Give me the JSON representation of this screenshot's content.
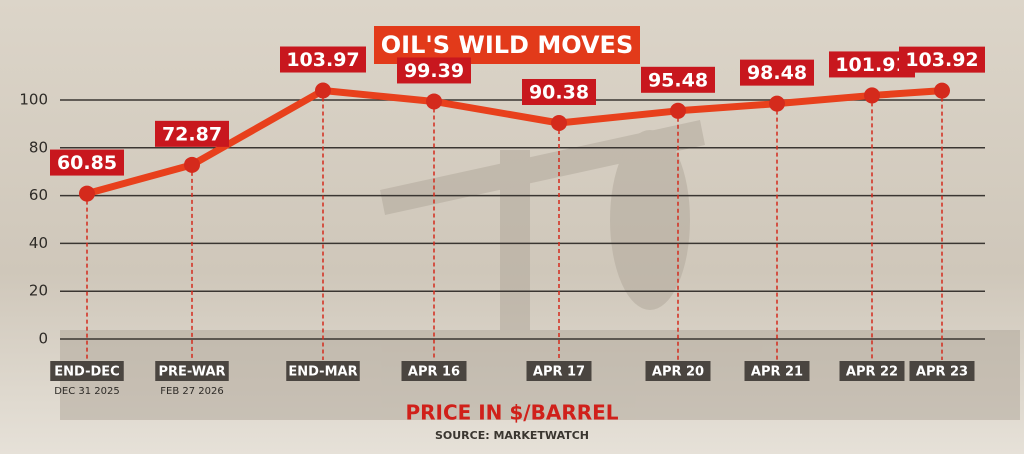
{
  "chart_data": {
    "type": "line",
    "title": "OIL'S WILD MOVES",
    "subtitle": "PRICE IN $/BARREL",
    "source": "SOURCE: MARKETWATCH",
    "categories": [
      "END-DEC",
      "PRE-WAR",
      "END-MAR",
      "APR 16",
      "APR 17",
      "APR 20",
      "APR 21",
      "APR 22",
      "APR 23"
    ],
    "category_notes": [
      "DEC 31 2025",
      "FEB 27 2026",
      null,
      null,
      null,
      null,
      null,
      null,
      null
    ],
    "values": [
      60.85,
      72.87,
      103.97,
      99.39,
      90.38,
      95.48,
      98.48,
      101.91,
      103.92
    ],
    "color": "#e8401c",
    "marker_color": "#d42a1c",
    "ylim": [
      0,
      100
    ],
    "yticks": [
      0,
      20,
      40,
      60,
      80,
      100
    ],
    "grid": true
  }
}
